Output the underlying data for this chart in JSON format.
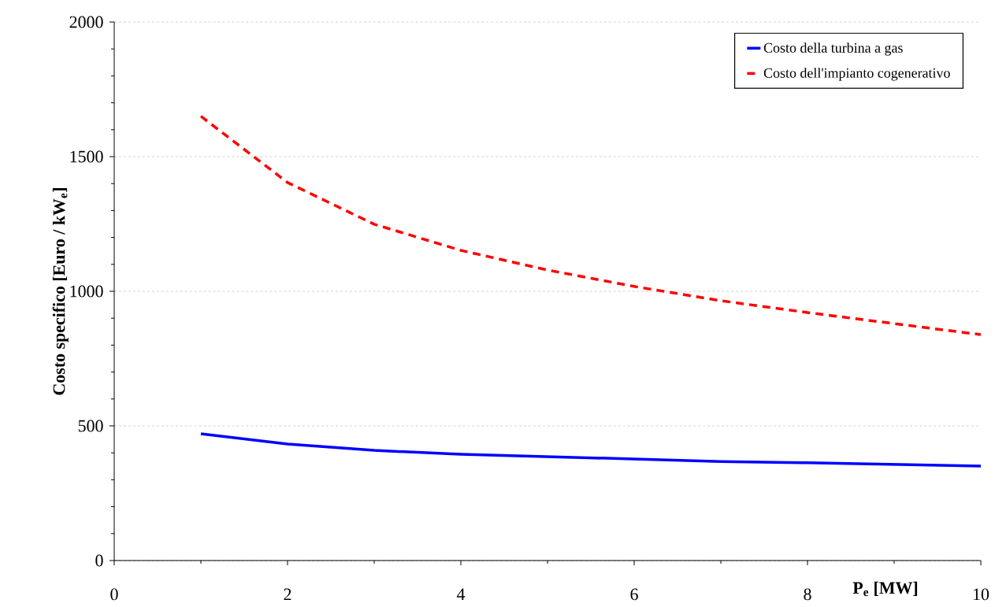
{
  "chart_data": {
    "type": "line",
    "xlabel": "**P$_{e}$ [MW]**",
    "ylabel": "**Costo specifico [Euro / kW$_{e}$]**",
    "x": [
      1,
      2,
      3,
      4,
      5,
      6,
      7,
      8,
      9,
      10
    ],
    "series": [
      {
        "name": "Costo della turbina a gas",
        "color": "#0000ff",
        "line_style": "solid",
        "values": [
          471,
          433,
          409,
          395,
          386,
          377,
          368,
          363,
          357,
          351
        ]
      },
      {
        "name": "Costo dell'impianto cogenerativo",
        "color": "#ff0000",
        "line_style": "dashed",
        "values": [
          1650,
          1404,
          1249,
          1152,
          1079,
          1018,
          965,
          921,
          880,
          839
        ]
      }
    ],
    "xlim": [
      0,
      10
    ],
    "ylim": [
      0,
      2000
    ],
    "xticks": [
      0,
      2,
      4,
      6,
      8,
      10
    ],
    "yticks": [
      0,
      500,
      1000,
      1500,
      2000
    ],
    "grid": "y",
    "legend": "top right"
  }
}
